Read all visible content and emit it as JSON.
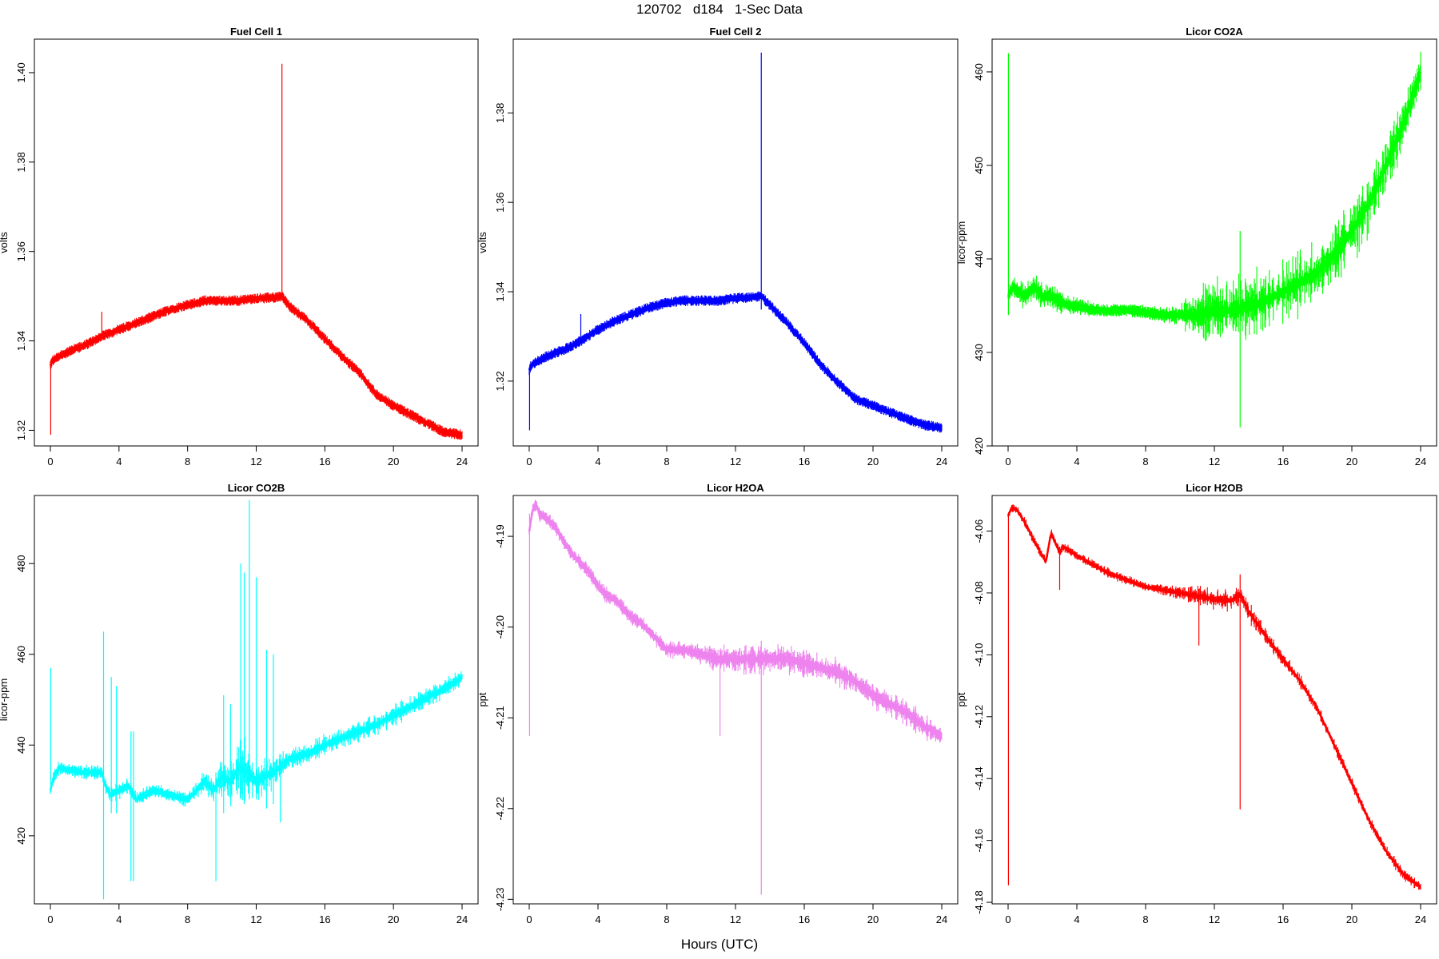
{
  "figure": {
    "title": "120702   d184   1-Sec Data",
    "xlabel": "Hours (UTC)"
  },
  "chart_data": [
    {
      "type": "line",
      "title": "Fuel Cell 1",
      "ylabel": "volts",
      "color": "#ff0000",
      "xlim": [
        0,
        24
      ],
      "ylim": [
        1.3165,
        1.4075
      ],
      "xticks": [
        "0",
        "4",
        "8",
        "12",
        "16",
        "20",
        "24"
      ],
      "yticks": [
        "1.32",
        "1.34",
        "1.36",
        "1.38",
        "1.40"
      ],
      "band": 0.0012,
      "x": [
        0,
        0.1,
        0.5,
        1,
        2,
        3,
        4,
        5,
        6,
        7,
        8,
        9,
        10,
        11,
        12,
        13,
        13.5,
        14,
        15,
        16,
        17,
        18,
        19,
        20,
        21,
        22,
        23,
        24
      ],
      "values": [
        1.3345,
        1.3355,
        1.3365,
        1.3375,
        1.339,
        1.341,
        1.3425,
        1.344,
        1.3455,
        1.347,
        1.348,
        1.349,
        1.349,
        1.349,
        1.3495,
        1.3497,
        1.35,
        1.3475,
        1.3445,
        1.3405,
        1.3365,
        1.333,
        1.328,
        1.3255,
        1.3235,
        1.3215,
        1.3195,
        1.319
      ],
      "spikes": [
        [
          0.02,
          1.319,
          1.335
        ],
        [
          3.0,
          1.3415,
          1.3465
        ],
        [
          13.5,
          1.349,
          1.402
        ]
      ]
    },
    {
      "type": "line",
      "title": "Fuel Cell 2",
      "ylabel": "volts",
      "color": "#0000ff",
      "xlim": [
        0,
        24
      ],
      "ylim": [
        1.3055,
        1.3965
      ],
      "xticks": [
        "0",
        "4",
        "8",
        "12",
        "16",
        "20",
        "24"
      ],
      "yticks": [
        "1.32",
        "1.34",
        "1.36",
        "1.38"
      ],
      "band": 0.0012,
      "x": [
        0,
        0.1,
        0.5,
        1,
        2,
        3,
        4,
        5,
        6,
        7,
        8,
        9,
        10,
        11,
        12,
        13,
        13.5,
        14,
        15,
        16,
        17,
        18,
        19,
        20,
        21,
        22,
        23,
        24
      ],
      "values": [
        1.3225,
        1.3235,
        1.3245,
        1.3255,
        1.327,
        1.329,
        1.3315,
        1.3335,
        1.335,
        1.3365,
        1.3375,
        1.338,
        1.338,
        1.338,
        1.3385,
        1.3388,
        1.339,
        1.337,
        1.333,
        1.3285,
        1.3235,
        1.3195,
        1.316,
        1.3145,
        1.313,
        1.3115,
        1.3102,
        1.3095
      ],
      "spikes": [
        [
          0.02,
          1.309,
          1.322
        ],
        [
          3.0,
          1.33,
          1.335
        ],
        [
          13.5,
          1.336,
          1.3935
        ]
      ]
    },
    {
      "type": "line",
      "title": "Licor CO2A",
      "ylabel": "licor-ppm",
      "color": "#00ff00",
      "xlim": [
        0,
        24
      ],
      "ylim": [
        420,
        463.5
      ],
      "xticks": [
        "0",
        "4",
        "8",
        "12",
        "16",
        "20",
        "24"
      ],
      "yticks": [
        "420",
        "430",
        "440",
        "450",
        "460"
      ],
      "band": 0.6,
      "x": [
        0,
        0.3,
        0.6,
        1,
        1.5,
        2,
        2.5,
        3,
        3.5,
        4,
        5,
        6,
        7,
        8,
        9,
        10,
        11,
        12,
        13,
        14,
        15,
        16,
        17,
        18,
        19,
        20,
        21,
        22,
        23,
        24
      ],
      "values": [
        436,
        437,
        436.5,
        436,
        437,
        436,
        436,
        435.5,
        435,
        435,
        434.5,
        434.5,
        434.5,
        434.3,
        434,
        434,
        434,
        434.5,
        434.5,
        435,
        435.5,
        436.5,
        437.5,
        438.5,
        440.5,
        443,
        446,
        450,
        454.5,
        460
      ],
      "noise": [
        0,
        1,
        1,
        1,
        1,
        1,
        1,
        1,
        0.5,
        0.4,
        0.3,
        0.2,
        0.2,
        0.2,
        0.3,
        0.8,
        2.5,
        3.5,
        3.5,
        3.5,
        3.5,
        3.5,
        3.5,
        3.5,
        3.5,
        3.5,
        3.5,
        3.5,
        3.5,
        2.5
      ],
      "spikes": [
        [
          0.02,
          434,
          462
        ],
        [
          13.5,
          422,
          443
        ]
      ]
    },
    {
      "type": "line",
      "title": "Licor CO2B",
      "ylabel": "licor-ppm",
      "color": "#00ffff",
      "xlim": [
        0,
        24
      ],
      "ylim": [
        405,
        495
      ],
      "xticks": [
        "0",
        "4",
        "8",
        "12",
        "16",
        "20",
        "24"
      ],
      "yticks": [
        "420",
        "440",
        "460",
        "480"
      ],
      "band": 0.8,
      "x": [
        0,
        0.2,
        0.5,
        1,
        2,
        3,
        3.2,
        3.5,
        4,
        4.5,
        4.7,
        5,
        6,
        7,
        8,
        9,
        9.5,
        10,
        10.5,
        11,
        11.5,
        12,
        12.5,
        13,
        14,
        15,
        16,
        17,
        18,
        19,
        20,
        21,
        22,
        23,
        24
      ],
      "values": [
        430,
        433,
        435,
        434.5,
        434,
        434,
        431,
        429,
        430,
        431,
        430,
        428,
        430,
        429,
        428,
        432,
        430,
        433,
        432,
        435,
        434,
        432,
        433,
        434,
        437,
        438,
        440,
        441.5,
        443,
        444.5,
        446.5,
        448.5,
        450.5,
        452.5,
        455
      ],
      "noise": [
        0,
        1,
        1,
        1,
        1,
        1,
        1,
        1,
        2,
        1,
        1,
        1,
        1,
        1,
        1,
        2,
        3,
        5,
        6,
        7,
        7,
        6,
        5,
        3,
        2,
        2,
        2,
        2,
        2,
        2,
        2,
        2,
        2,
        2,
        1.5
      ],
      "spikes": [
        [
          0.02,
          430,
          457
        ],
        [
          3.1,
          406,
          465
        ],
        [
          3.55,
          425,
          455
        ],
        [
          3.85,
          425,
          453
        ],
        [
          4.7,
          410,
          443
        ],
        [
          4.85,
          410,
          443
        ],
        [
          9.65,
          410,
          434
        ],
        [
          10.1,
          425,
          451
        ],
        [
          10.5,
          428,
          449
        ],
        [
          11.1,
          428,
          480
        ],
        [
          11.3,
          427,
          478
        ],
        [
          11.6,
          428,
          494
        ],
        [
          12.0,
          428,
          477
        ],
        [
          12.6,
          426,
          461
        ],
        [
          13.0,
          427,
          460
        ],
        [
          13.4,
          423,
          438
        ]
      ]
    },
    {
      "type": "line",
      "title": "Licor H2OA",
      "ylabel": "ppt",
      "color": "#ee82ee",
      "xlim": [
        0,
        24
      ],
      "ylim": [
        -4.2305,
        -4.1855
      ],
      "xticks": [
        "0",
        "4",
        "8",
        "12",
        "16",
        "20",
        "24"
      ],
      "yticks": [
        "-4.23",
        "-4.22",
        "-4.21",
        "-4.20",
        "-4.19"
      ],
      "band": 0.0005,
      "x": [
        0,
        0.2,
        0.4,
        0.6,
        1,
        1.5,
        2,
        2.5,
        3,
        3.5,
        4,
        4.5,
        5,
        5.5,
        6,
        6.5,
        7,
        7.5,
        8,
        9,
        10,
        11,
        12,
        13,
        14,
        15,
        16,
        17,
        18,
        19,
        20,
        21,
        22,
        23,
        24
      ],
      "values": [
        -4.1895,
        -4.187,
        -4.1865,
        -4.1875,
        -4.188,
        -4.189,
        -4.1905,
        -4.192,
        -4.193,
        -4.194,
        -4.1955,
        -4.1965,
        -4.197,
        -4.198,
        -4.199,
        -4.1995,
        -4.2005,
        -4.2015,
        -4.2025,
        -4.2025,
        -4.203,
        -4.2035,
        -4.2035,
        -4.2035,
        -4.2035,
        -4.2035,
        -4.204,
        -4.2045,
        -4.205,
        -4.206,
        -4.2075,
        -4.2085,
        -4.2095,
        -4.211,
        -4.212
      ],
      "noise": [
        0,
        0.0005,
        0.0005,
        0.0005,
        0.0005,
        0.0005,
        0.0005,
        0.0005,
        0.0005,
        0.0005,
        0.0005,
        0.0005,
        0.0005,
        0.0005,
        0.0005,
        0.0005,
        0.0005,
        0.0005,
        0.0005,
        0.0005,
        0.0008,
        0.0012,
        0.0015,
        0.0015,
        0.0015,
        0.0015,
        0.0015,
        0.0012,
        0.0012,
        0.0012,
        0.0012,
        0.0012,
        0.0012,
        0.001,
        0.0008
      ],
      "spikes": [
        [
          0.02,
          -4.212,
          -4.1875
        ],
        [
          11.1,
          -4.212,
          -4.2025
        ],
        [
          13.5,
          -4.2295,
          -4.2015
        ]
      ]
    },
    {
      "type": "line",
      "title": "Licor H2OB",
      "ylabel": "ppt",
      "color": "#ff0000",
      "xlim": [
        0,
        24
      ],
      "ylim": [
        -4.1805,
        -4.0485
      ],
      "xticks": [
        "0",
        "4",
        "8",
        "12",
        "16",
        "20",
        "24"
      ],
      "yticks": [
        "-4.18",
        "-4.16",
        "-4.14",
        "-4.12",
        "-4.10",
        "-4.08",
        "-4.06"
      ],
      "band": 0.0008,
      "x": [
        0,
        0.2,
        0.5,
        1,
        1.5,
        2,
        2.2,
        2.5,
        3,
        3.2,
        4,
        5,
        6,
        7,
        8,
        9,
        10,
        11,
        12,
        13,
        13.5,
        14,
        15,
        16,
        17,
        18,
        19,
        20,
        21,
        22,
        23,
        24
      ],
      "values": [
        -4.055,
        -4.0525,
        -4.053,
        -4.0575,
        -4.063,
        -4.068,
        -4.07,
        -4.0605,
        -4.067,
        -4.065,
        -4.068,
        -4.071,
        -4.074,
        -4.076,
        -4.078,
        -4.079,
        -4.08,
        -4.081,
        -4.082,
        -4.0825,
        -4.0805,
        -4.086,
        -4.094,
        -4.1015,
        -4.1085,
        -4.1175,
        -4.1295,
        -4.1415,
        -4.1535,
        -4.1635,
        -4.171,
        -4.175
      ],
      "noise": [
        0,
        0.001,
        0.001,
        0.001,
        0.001,
        0.001,
        0.001,
        0.001,
        0.001,
        0.001,
        0.001,
        0.001,
        0.001,
        0.001,
        0.001,
        0.0012,
        0.002,
        0.003,
        0.003,
        0.003,
        0.003,
        0.003,
        0.002,
        0.002,
        0.002,
        0.0015,
        0.0015,
        0.0015,
        0.0015,
        0.0015,
        0.0015,
        0.0012
      ],
      "spikes": [
        [
          0.02,
          -4.1745,
          -4.055
        ],
        [
          3.0,
          -4.079,
          -4.065
        ],
        [
          11.1,
          -4.097,
          -4.082
        ],
        [
          13.5,
          -4.15,
          -4.074
        ]
      ]
    }
  ]
}
